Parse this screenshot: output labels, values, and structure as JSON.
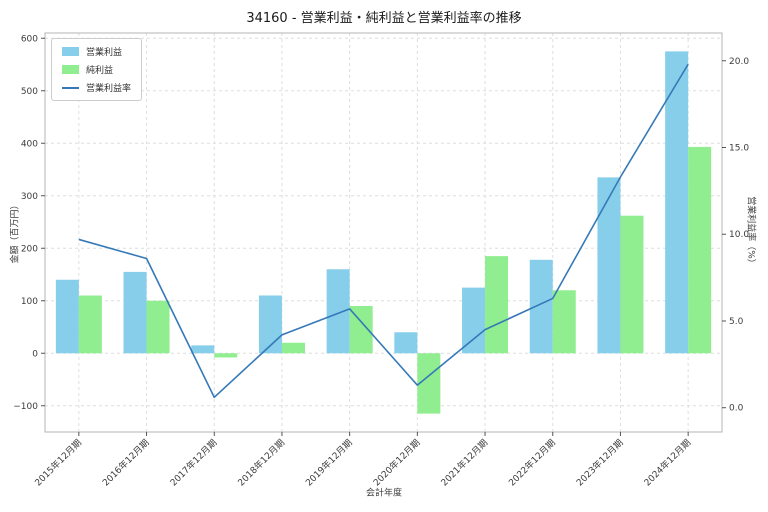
{
  "chart_data": {
    "type": "bar",
    "title": "34160 - 営業利益・純利益と営業利益率の推移",
    "xlabel": "会計年度",
    "ylabel_left": "金額（百万円）",
    "ylabel_right": "営業利益率（%）",
    "categories": [
      "2015年12月期",
      "2016年12月期",
      "2017年12月期",
      "2018年12月期",
      "2019年12月期",
      "2020年12月期",
      "2021年12月期",
      "2022年12月期",
      "2023年12月期",
      "2024年12月期"
    ],
    "series": [
      {
        "name": "営業利益",
        "type": "bar",
        "axis": "left",
        "color": "#87ceeb",
        "values": [
          140,
          155,
          15,
          110,
          160,
          40,
          125,
          178,
          335,
          575
        ]
      },
      {
        "name": "純利益",
        "type": "bar",
        "axis": "left",
        "color": "#90ee90",
        "values": [
          110,
          100,
          -8,
          20,
          90,
          -115,
          185,
          120,
          262,
          393
        ]
      },
      {
        "name": "営業利益率",
        "type": "line",
        "axis": "right",
        "color": "#3579b8",
        "values": [
          9.7,
          8.6,
          0.6,
          4.2,
          5.7,
          1.3,
          4.5,
          6.3,
          13.3,
          19.8
        ]
      }
    ],
    "left_axis": {
      "ticks": [
        -100,
        0,
        100,
        200,
        300,
        400,
        500,
        600
      ],
      "range": [
        -150,
        610
      ]
    },
    "right_axis": {
      "ticks": [
        0.0,
        5.0,
        10.0,
        15.0,
        20.0
      ],
      "range": [
        -1.4,
        21.6
      ]
    },
    "grid": true,
    "legend_position": "upper left"
  }
}
